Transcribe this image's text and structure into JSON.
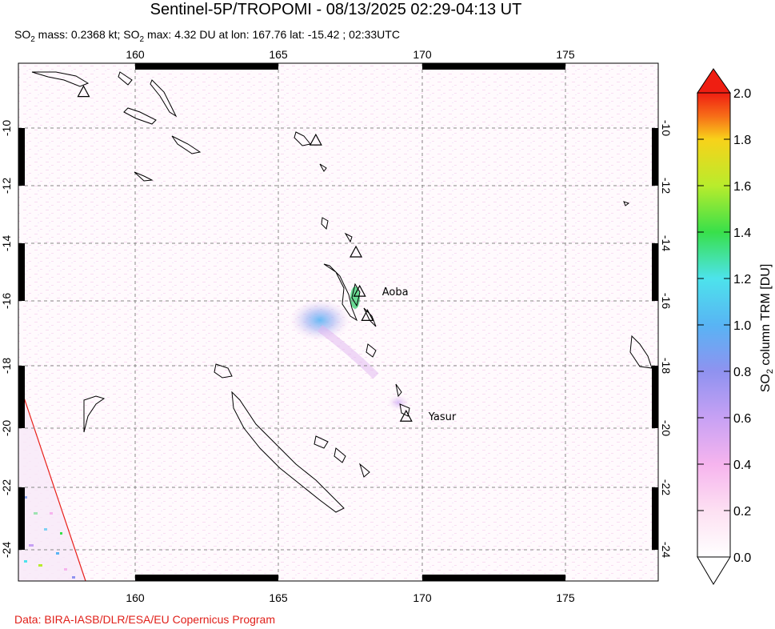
{
  "header": {
    "title": "Sentinel-5P/TROPOMI - 08/13/2025 02:29-04:13 UT",
    "subtitle_parts": {
      "so2_a": "SO",
      "sub2_a": "2",
      "mass": " mass: 0.2368 kt; ",
      "so2_b": "SO",
      "sub2_b": "2",
      "max": " max: 4.32 DU at lon: 167.76 lat: -15.42 ; 02:33UTC"
    }
  },
  "map": {
    "lon_range": [
      155.5,
      178.2
    ],
    "lat_range": [
      -25.0,
      -7.8
    ],
    "lon_ticks": [
      "160",
      "165",
      "170",
      "175"
    ],
    "lat_ticks": [
      "-10",
      "-12",
      "-14",
      "-16",
      "-18",
      "-20",
      "-22",
      "-24"
    ],
    "volcanoes": [
      {
        "name": "Aoba",
        "lon": 167.83,
        "lat": -15.4,
        "labeled": true
      },
      {
        "name": "Yasur",
        "lon": 169.45,
        "lat": -19.53,
        "labeled": true
      },
      {
        "name": "",
        "lon": 158.2,
        "lat": -8.8,
        "labeled": false
      },
      {
        "name": "",
        "lon": 166.3,
        "lat": -10.4,
        "labeled": false
      },
      {
        "name": "",
        "lon": 167.7,
        "lat": -14.1,
        "labeled": false
      },
      {
        "name": "",
        "lon": 168.1,
        "lat": -16.2,
        "labeled": false
      }
    ]
  },
  "colorbar": {
    "axis_label_prefix": "SO",
    "axis_label_sub": "2",
    "axis_label_suffix": " column TRM [DU]",
    "ticks": [
      "0.0",
      "0.2",
      "0.4",
      "0.6",
      "0.8",
      "1.0",
      "1.2",
      "1.4",
      "1.6",
      "1.8",
      "2.0"
    ],
    "min": 0.0,
    "max": 2.0,
    "colors": [
      "#ffffff",
      "#fde0f2",
      "#f6b4ee",
      "#c7a1f4",
      "#8f92f0",
      "#58b4f4",
      "#4de3ec",
      "#38e04a",
      "#b9ec2c",
      "#f8d21a",
      "#f76d18",
      "#ef1e12"
    ]
  },
  "credit": "Data: BIRA-IASB/DLR/ESA/EU Copernicus Program"
}
